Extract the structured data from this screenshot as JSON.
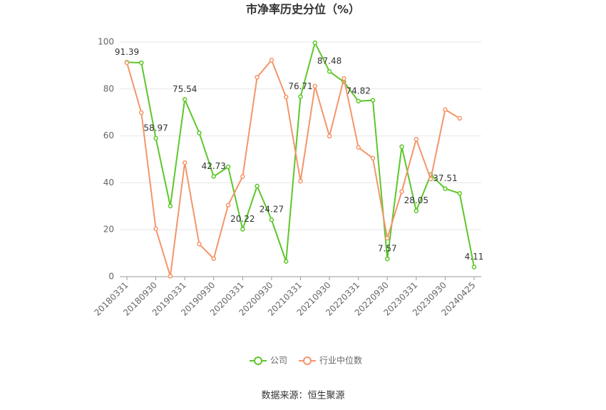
{
  "chart_data": {
    "type": "line",
    "title": "市净率历史分位（%）",
    "categories": [
      "20180331",
      null,
      "20180930",
      null,
      "20190331",
      null,
      "20190930",
      null,
      "20200331",
      null,
      "20200930",
      null,
      "20210331",
      null,
      "20210930",
      null,
      "20220331",
      null,
      "20220930",
      null,
      "20230331",
      null,
      "20230930",
      null,
      "20240425"
    ],
    "series": [
      {
        "name": "公司",
        "color": "#5cc72a",
        "values": [
          91.39,
          91.2,
          58.97,
          30.1,
          75.54,
          61.3,
          42.73,
          46.8,
          20.22,
          38.6,
          24.27,
          6.5,
          76.71,
          99.7,
          87.48,
          83.0,
          74.82,
          75.2,
          7.57,
          55.4,
          28.05,
          43.5,
          37.51,
          35.5,
          4.11
        ],
        "value_labels": [
          "91.39",
          null,
          "58.97",
          null,
          "75.54",
          null,
          "42.73",
          null,
          "20.22",
          null,
          "24.27",
          null,
          "76.71",
          null,
          "87.48",
          null,
          "74.82",
          null,
          "7.57",
          null,
          "28.05",
          null,
          "37.51",
          null,
          "4.11"
        ]
      },
      {
        "name": "行业中位数",
        "color": "#f4956a",
        "values": [
          91.2,
          69.9,
          20.4,
          0.2,
          48.6,
          13.9,
          7.7,
          30.5,
          42.7,
          85.0,
          92.3,
          76.6,
          40.7,
          81.2,
          59.9,
          84.5,
          55.1,
          50.5,
          16.4,
          36.3,
          58.6,
          41.6,
          71.2,
          67.5,
          null
        ]
      }
    ],
    "ylim": [
      0,
      100
    ],
    "yticks": [
      0,
      20,
      40,
      60,
      80,
      100
    ],
    "grid": true,
    "source": "数据来源：恒生聚源"
  }
}
